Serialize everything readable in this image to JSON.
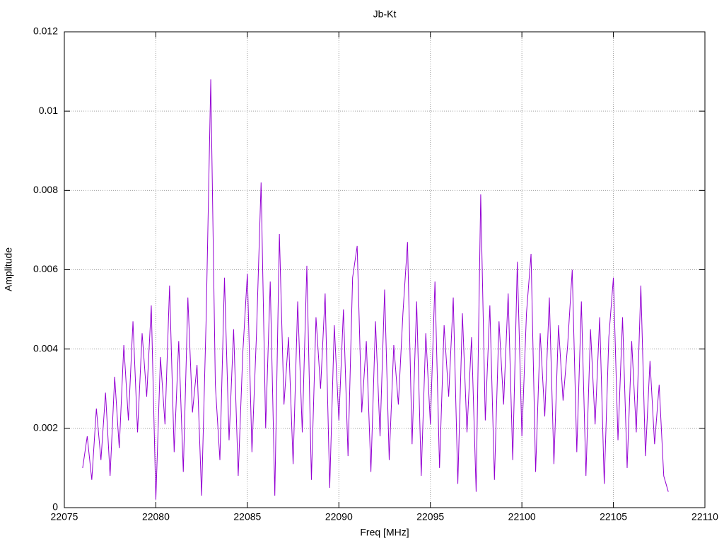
{
  "chart_data": {
    "type": "line",
    "title": "Jb-Kt",
    "x_label": "Freq [MHz]",
    "y_label": "Amplitude",
    "color": "#9400d3",
    "grid": true,
    "xlim": [
      22075,
      22110
    ],
    "xticks": [
      22075,
      22080,
      22085,
      22090,
      22095,
      22100,
      22105,
      22110
    ],
    "ylim": [
      0,
      0.012
    ],
    "yticks": [
      0,
      0.002,
      0.004,
      0.006,
      0.008,
      0.01,
      0.012
    ],
    "x": [
      22076,
      22076.25,
      22076.5,
      22076.75,
      22077,
      22077.25,
      22077.5,
      22077.75,
      22078,
      22078.25,
      22078.5,
      22078.75,
      22079,
      22079.25,
      22079.5,
      22079.75,
      22080,
      22080.25,
      22080.5,
      22080.75,
      22081,
      22081.25,
      22081.5,
      22081.75,
      22082,
      22082.25,
      22082.5,
      22082.75,
      22083,
      22083.25,
      22083.5,
      22083.75,
      22084,
      22084.25,
      22084.5,
      22084.75,
      22085,
      22085.25,
      22085.5,
      22085.75,
      22086,
      22086.25,
      22086.5,
      22086.75,
      22087,
      22087.25,
      22087.5,
      22087.75,
      22088,
      22088.25,
      22088.5,
      22088.75,
      22089,
      22089.25,
      22089.5,
      22089.75,
      22090,
      22090.25,
      22090.5,
      22090.75,
      22091,
      22091.25,
      22091.5,
      22091.75,
      22092,
      22092.25,
      22092.5,
      22092.75,
      22093,
      22093.25,
      22093.5,
      22093.75,
      22094,
      22094.25,
      22094.5,
      22094.75,
      22095,
      22095.25,
      22095.5,
      22095.75,
      22096,
      22096.25,
      22096.5,
      22096.75,
      22097,
      22097.25,
      22097.5,
      22097.75,
      22098,
      22098.25,
      22098.5,
      22098.75,
      22099,
      22099.25,
      22099.5,
      22099.75,
      22100,
      22100.25,
      22100.5,
      22100.75,
      22101,
      22101.25,
      22101.5,
      22101.75,
      22102,
      22102.25,
      22102.5,
      22102.75,
      22103,
      22103.25,
      22103.5,
      22103.75,
      22104,
      22104.25,
      22104.5,
      22104.75,
      22105,
      22105.25,
      22105.5,
      22105.75,
      22106,
      22106.25,
      22106.5,
      22106.75,
      22107,
      22107.25,
      22107.5,
      22107.75,
      22108
    ],
    "values": [
      0.001,
      0.0018,
      0.0007,
      0.0025,
      0.0012,
      0.0029,
      0.0008,
      0.0033,
      0.0015,
      0.0041,
      0.0022,
      0.0047,
      0.0019,
      0.0044,
      0.0028,
      0.0051,
      0.0002,
      0.0038,
      0.0021,
      0.0056,
      0.0014,
      0.0042,
      0.0009,
      0.0053,
      0.0024,
      0.0036,
      0.0003,
      0.0048,
      0.0108,
      0.0031,
      0.0012,
      0.0058,
      0.0017,
      0.0045,
      0.0008,
      0.0039,
      0.0059,
      0.0014,
      0.0044,
      0.0082,
      0.002,
      0.0057,
      0.0003,
      0.0069,
      0.0026,
      0.0043,
      0.0011,
      0.0052,
      0.0019,
      0.0061,
      0.0007,
      0.0048,
      0.003,
      0.0054,
      0.0005,
      0.0046,
      0.0022,
      0.005,
      0.0013,
      0.0058,
      0.0066,
      0.0024,
      0.0042,
      0.0009,
      0.0047,
      0.0018,
      0.0055,
      0.0012,
      0.0041,
      0.0026,
      0.0049,
      0.0067,
      0.0016,
      0.0052,
      0.0008,
      0.0044,
      0.0021,
      0.0057,
      0.001,
      0.0046,
      0.0028,
      0.0053,
      0.0006,
      0.0049,
      0.0019,
      0.0043,
      0.0004,
      0.0079,
      0.0022,
      0.0051,
      0.0007,
      0.0047,
      0.0026,
      0.0054,
      0.0012,
      0.0062,
      0.0018,
      0.0049,
      0.0064,
      0.0009,
      0.0044,
      0.0023,
      0.0053,
      0.0011,
      0.0046,
      0.0027,
      0.0041,
      0.006,
      0.0014,
      0.0052,
      0.0008,
      0.0045,
      0.0021,
      0.0048,
      0.0006,
      0.0043,
      0.0058,
      0.0017,
      0.0048,
      0.001,
      0.0042,
      0.0019,
      0.0056,
      0.0013,
      0.0037,
      0.0016,
      0.0031,
      0.0008,
      0.0004
    ]
  }
}
